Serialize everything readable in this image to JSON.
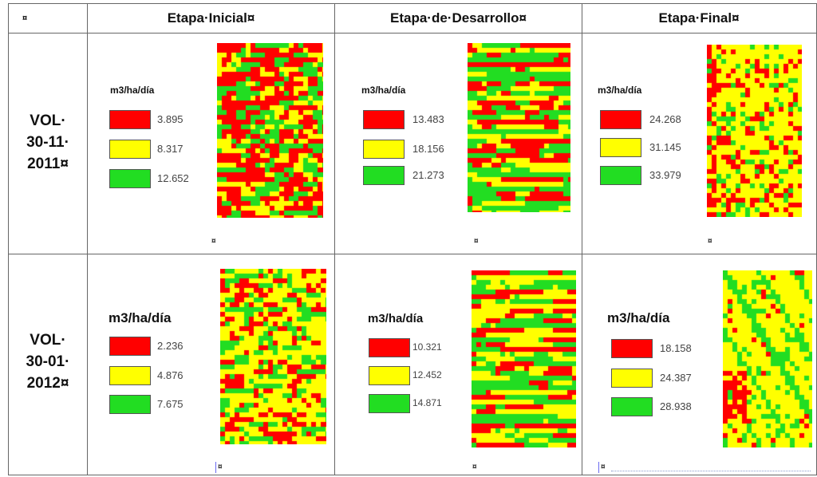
{
  "header": {
    "corner_mark": "¤",
    "stages": [
      "Etapa·Inicial¤",
      "Etapa·de·Desarrollo¤",
      "Etapa·Final¤"
    ]
  },
  "rows": [
    {
      "label": [
        "VOL·",
        "30-11·",
        "2011¤"
      ],
      "cells": [
        {
          "unit": "m3/ha/día",
          "values": [
            "3.895",
            "8.317",
            "12.652"
          ],
          "mark": "¤",
          "pattern": "initial",
          "mix": [
            0.45,
            0.25,
            0.3
          ]
        },
        {
          "unit": "m3/ha/día",
          "values": [
            "13.483",
            "18.156",
            "21.273"
          ],
          "mark": "¤",
          "pattern": "stripes",
          "mix": [
            0.3,
            0.3,
            0.4
          ]
        },
        {
          "unit": "m3/ha/día",
          "values": [
            "24.268",
            "31.145",
            "33.979"
          ],
          "mark": "¤",
          "pattern": "final",
          "mix": [
            0.22,
            0.63,
            0.15
          ]
        }
      ]
    },
    {
      "label": [
        "VOL·",
        "30-01·",
        "2012¤"
      ],
      "cells": [
        {
          "unit": "m3/ha/día",
          "values": [
            "2.236",
            "4.876",
            "7.675"
          ],
          "mark": "¤",
          "pattern": "initial",
          "mix": [
            0.22,
            0.55,
            0.23
          ]
        },
        {
          "unit": "m3/ha/día",
          "values": [
            "10.321",
            "12.452",
            "14.871"
          ],
          "mark": "¤",
          "pattern": "stripes",
          "mix": [
            0.22,
            0.5,
            0.28
          ]
        },
        {
          "unit": "m3/ha/día",
          "values": [
            "18.158",
            "24.387",
            "28.938"
          ],
          "mark": "¤",
          "pattern": "diag",
          "mix": [
            0.1,
            0.7,
            0.2
          ]
        }
      ]
    }
  ],
  "colors": {
    "red": "#ff0000",
    "yellow": "#ffff00",
    "green": "#22dd22"
  }
}
